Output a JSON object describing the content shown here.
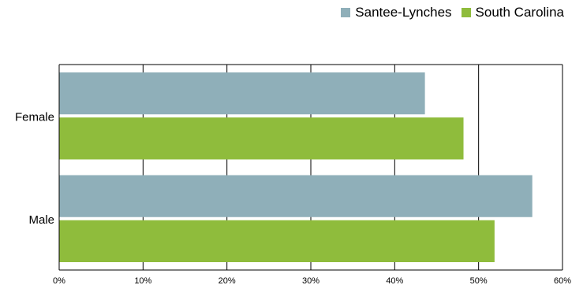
{
  "chart_data": {
    "type": "bar",
    "orientation": "horizontal",
    "categories": [
      "Female",
      "Male"
    ],
    "series": [
      {
        "name": "Santee-Lynches",
        "color": "#8fafb9",
        "values": [
          43.6,
          56.4
        ]
      },
      {
        "name": "South Carolina",
        "color": "#8fbc3c",
        "values": [
          48.2,
          51.9
        ]
      }
    ],
    "xlim": [
      0,
      60
    ],
    "xticks": [
      0,
      10,
      20,
      30,
      40,
      50,
      60
    ],
    "tick_suffix": "%",
    "grid": true,
    "legend_position": "top-right",
    "title": "",
    "xlabel": "",
    "ylabel": ""
  }
}
